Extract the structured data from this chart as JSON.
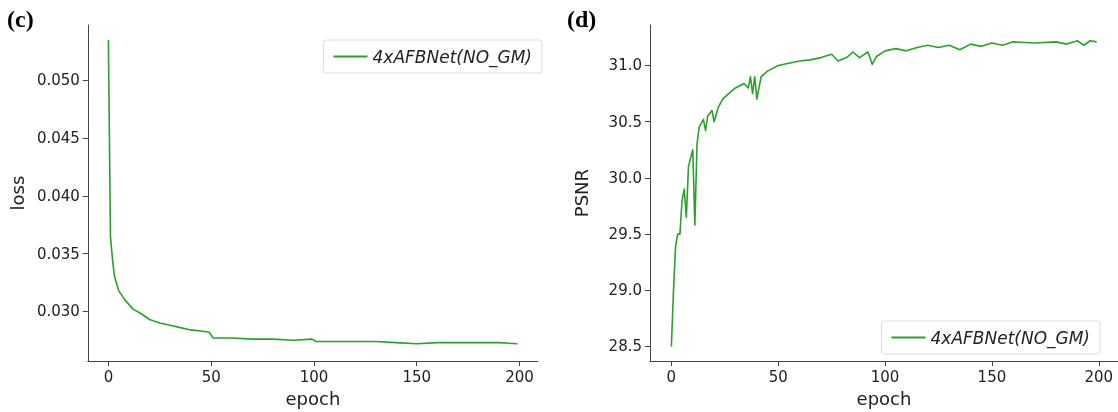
{
  "chart_data": [
    {
      "type": "line",
      "title": "(c)",
      "xlabel": "epoch",
      "ylabel": "loss",
      "xlim": [
        -10,
        209
      ],
      "ylim": [
        0.0257,
        0.0548
      ],
      "xticks": [
        0,
        50,
        100,
        150,
        200
      ],
      "yticks": [
        {
          "value": 0.03,
          "label": "0.030"
        },
        0.035,
        {
          "value": 0.04,
          "label": "0.040"
        },
        0.045,
        {
          "value": 0.05,
          "label": "0.050"
        }
      ],
      "grid": false,
      "legend": "top right",
      "marker": "none",
      "line_style": "solid",
      "series": [
        {
          "name": "4xAFBNet(NO_GM)",
          "color": "#2ca02c",
          "x": [
            0,
            1,
            2,
            3,
            5,
            8,
            12,
            16,
            20,
            25,
            30,
            35,
            40,
            45,
            49,
            51,
            60,
            70,
            80,
            90,
            99,
            101,
            110,
            120,
            130,
            140,
            150,
            160,
            170,
            180,
            190,
            199
          ],
          "values": [
            0.0535,
            0.0365,
            0.0345,
            0.033,
            0.0318,
            0.031,
            0.0302,
            0.0298,
            0.0293,
            0.029,
            0.0288,
            0.0286,
            0.0284,
            0.0283,
            0.0282,
            0.0277,
            0.0277,
            0.0276,
            0.0276,
            0.0275,
            0.0276,
            0.0274,
            0.0274,
            0.0274,
            0.0274,
            0.0273,
            0.0272,
            0.0273,
            0.0273,
            0.0273,
            0.0273,
            0.0272
          ]
        }
      ]
    },
    {
      "type": "line",
      "title": "(d)",
      "xlabel": "epoch",
      "ylabel": "PSNR",
      "xlim": [
        -10,
        209
      ],
      "ylim": [
        28.37,
        31.36
      ],
      "xticks": [
        0,
        50,
        100,
        150,
        200
      ],
      "yticks": [
        {
          "value": 28.5,
          "label": "28.5"
        },
        {
          "value": 29,
          "label": "29.0"
        },
        {
          "value": 29.5,
          "label": "29.5"
        },
        {
          "value": 30,
          "label": "30.0"
        },
        {
          "value": 30.5,
          "label": "30.5"
        },
        {
          "value": 31,
          "label": "31.0"
        }
      ],
      "grid": false,
      "legend": "bottom right",
      "marker": "none",
      "line_style": "solid",
      "series": [
        {
          "name": "4xAFBNet(NO_GM)",
          "color": "#2ca02c",
          "x": [
            0,
            1,
            2,
            3,
            4,
            5,
            6,
            7,
            8,
            10,
            11,
            12,
            13,
            15,
            16,
            17,
            19,
            20,
            22,
            24,
            28,
            30,
            34,
            36,
            37,
            38,
            39,
            40,
            42,
            45,
            50,
            55,
            60,
            65,
            70,
            75,
            78,
            82,
            85,
            88,
            92,
            94,
            96,
            100,
            105,
            110,
            115,
            120,
            125,
            130,
            135,
            140,
            145,
            150,
            155,
            160,
            170,
            180,
            185,
            190,
            193,
            196,
            199
          ],
          "values": [
            28.5,
            29.0,
            29.4,
            29.5,
            29.5,
            29.8,
            29.9,
            29.65,
            30.1,
            30.25,
            29.58,
            30.3,
            30.45,
            30.52,
            30.42,
            30.55,
            30.6,
            30.5,
            30.63,
            30.7,
            30.77,
            30.8,
            30.84,
            30.8,
            30.9,
            30.75,
            30.9,
            30.7,
            30.9,
            30.95,
            31.0,
            31.02,
            31.04,
            31.05,
            31.07,
            31.1,
            31.04,
            31.07,
            31.12,
            31.07,
            31.12,
            31.01,
            31.08,
            31.13,
            31.15,
            31.13,
            31.16,
            31.18,
            31.16,
            31.18,
            31.14,
            31.19,
            31.17,
            31.2,
            31.18,
            31.21,
            31.2,
            31.21,
            31.19,
            31.22,
            31.18,
            31.22,
            31.21
          ]
        }
      ]
    }
  ]
}
